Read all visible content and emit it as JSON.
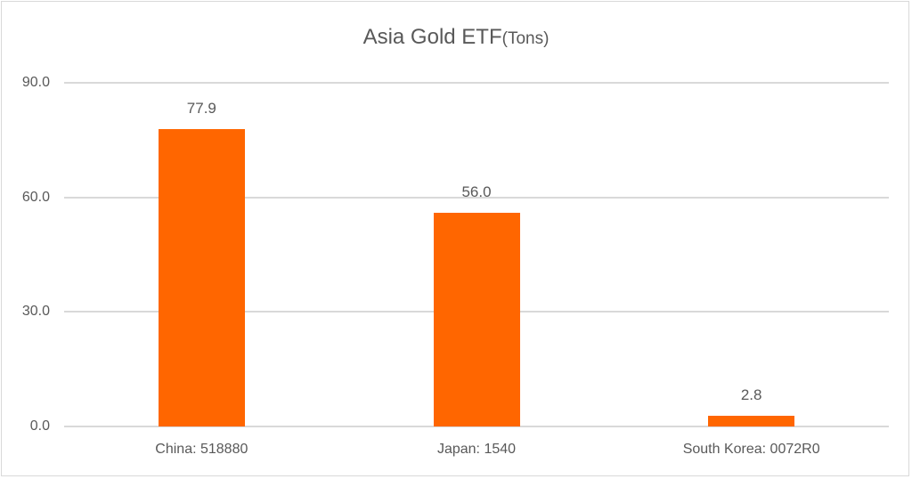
{
  "chart_data": {
    "type": "bar",
    "title": "Asia Gold ETF",
    "title_unit": "(Tons)",
    "categories": [
      "China: 518880",
      "Japan: 1540",
      "South Korea: 0072R0"
    ],
    "values": [
      77.9,
      56.0,
      2.8
    ],
    "value_labels": [
      "77.9",
      "56.0",
      "2.8"
    ],
    "xlabel": "",
    "ylabel": "",
    "ylim": [
      0,
      90
    ],
    "yticks": [
      "0.0",
      "30.0",
      "60.0",
      "90.0"
    ],
    "grid": true,
    "legend": "none",
    "bar_color": "#ff6600"
  }
}
